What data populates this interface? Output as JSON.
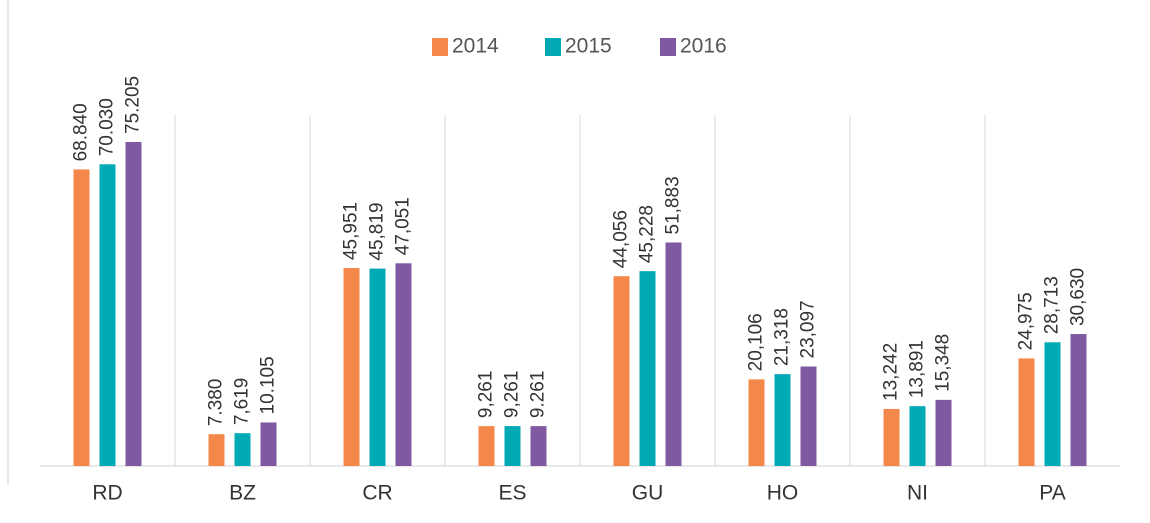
{
  "chart_data": {
    "type": "bar",
    "categories": [
      "RD",
      "BZ",
      "CR",
      "ES",
      "GU",
      "HO",
      "NI",
      "PA"
    ],
    "series": [
      {
        "name": "2014",
        "color": "#f4884a",
        "values": [
          68840,
          7380,
          45951,
          9261,
          44056,
          20106,
          13242,
          24975
        ],
        "value_labels": [
          "68.840",
          "7.380",
          "45,951",
          "9,261",
          "44,056",
          "20,106",
          "13,242",
          "24,975"
        ]
      },
      {
        "name": "2015",
        "color": "#00aab5",
        "values": [
          70030,
          7619,
          45819,
          9261,
          45228,
          21318,
          13891,
          28713
        ],
        "value_labels": [
          "70.030",
          "7,619",
          "45,819",
          "9,261",
          "45,228",
          "21,318",
          "13,891",
          "28,713"
        ]
      },
      {
        "name": "2016",
        "color": "#7f5aa2",
        "values": [
          75205,
          10105,
          47051,
          9261,
          51883,
          23097,
          15348,
          30630
        ],
        "value_labels": [
          "75.205",
          "10.105",
          "47,051",
          "9.261",
          "51,883",
          "23,097",
          "15,348",
          "30,630"
        ]
      }
    ],
    "legend": "top"
  }
}
